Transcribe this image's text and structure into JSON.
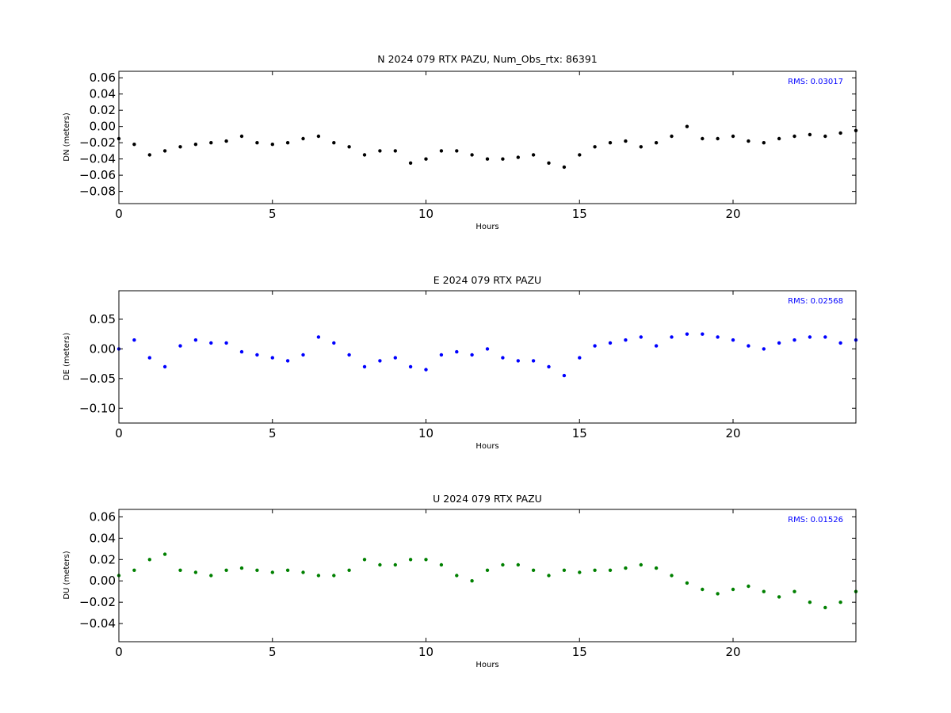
{
  "chart_data": [
    {
      "type": "scatter",
      "title": "N 2024 079 RTX  PAZU, Num_Obs_rtx: 86391",
      "xlabel": "Hours",
      "ylabel": "DN (meters)",
      "xlim": [
        0,
        24
      ],
      "ylim": [
        -0.095,
        0.068
      ],
      "xticks": [
        0,
        5,
        10,
        15,
        20
      ],
      "yticks": [
        0.06,
        0.04,
        0.02,
        0.0,
        -0.02,
        -0.04,
        -0.06,
        -0.08
      ],
      "ytick_labels": [
        "0.06",
        "0.04",
        "0.02",
        "0.00",
        "−0.02",
        "−0.04",
        "−0.06",
        "−0.08"
      ],
      "color": "#000000",
      "annotation": "RMS:  0.03017",
      "annotation_color": "#0000ff",
      "grid": false,
      "series": [
        {
          "x": [
            0,
            0.5,
            1,
            1.5,
            2,
            2.5,
            3,
            3.5,
            4,
            4.5,
            5,
            5.5,
            6,
            6.5,
            7,
            7.5,
            8,
            8.5,
            9,
            9.5,
            10,
            10.5,
            11,
            11.5,
            12,
            12.5,
            13,
            13.5,
            14,
            14.5,
            15,
            15.5,
            16,
            16.5,
            17,
            17.5,
            18,
            18.5,
            19,
            19.5,
            20,
            20.5,
            21,
            21.5,
            22,
            22.5,
            23,
            23.5,
            24
          ],
          "y": [
            -0.015,
            -0.022,
            -0.035,
            -0.03,
            -0.025,
            -0.022,
            -0.02,
            -0.018,
            -0.012,
            -0.02,
            -0.022,
            -0.02,
            -0.015,
            -0.012,
            -0.02,
            -0.025,
            -0.035,
            -0.03,
            -0.03,
            -0.045,
            -0.04,
            -0.03,
            -0.03,
            -0.035,
            -0.04,
            -0.04,
            -0.038,
            -0.035,
            -0.045,
            -0.05,
            -0.035,
            -0.025,
            -0.02,
            -0.018,
            -0.025,
            -0.02,
            -0.012,
            -0.0,
            -0.015,
            -0.015,
            -0.012,
            -0.018,
            -0.02,
            -0.015,
            -0.012,
            -0.01,
            -0.012,
            -0.008,
            -0.005
          ]
        }
      ]
    },
    {
      "type": "scatter",
      "title": "E 2024 079 RTX  PAZU",
      "xlabel": "Hours",
      "ylabel": "DE (meters)",
      "xlim": [
        0,
        24
      ],
      "ylim": [
        -0.125,
        0.098
      ],
      "xticks": [
        0,
        5,
        10,
        15,
        20
      ],
      "yticks": [
        0.05,
        0.0,
        -0.05,
        -0.1
      ],
      "ytick_labels": [
        "0.05",
        "0.00",
        "−0.05",
        "−0.10"
      ],
      "color": "#0000ff",
      "annotation": "RMS:  0.02568",
      "annotation_color": "#0000ff",
      "grid": false,
      "series": [
        {
          "x": [
            0,
            0.5,
            1,
            1.5,
            2,
            2.5,
            3,
            3.5,
            4,
            4.5,
            5,
            5.5,
            6,
            6.5,
            7,
            7.5,
            8,
            8.5,
            9,
            9.5,
            10,
            10.5,
            11,
            11.5,
            12,
            12.5,
            13,
            13.5,
            14,
            14.5,
            15,
            15.5,
            16,
            16.5,
            17,
            17.5,
            18,
            18.5,
            19,
            19.5,
            20,
            20.5,
            21,
            21.5,
            22,
            22.5,
            23,
            23.5,
            24
          ],
          "y": [
            0.0,
            0.015,
            -0.015,
            -0.03,
            0.005,
            0.015,
            0.01,
            0.01,
            -0.005,
            -0.01,
            -0.015,
            -0.02,
            -0.01,
            0.02,
            0.01,
            -0.01,
            -0.03,
            -0.02,
            -0.015,
            -0.03,
            -0.035,
            -0.01,
            -0.005,
            -0.01,
            0.0,
            -0.015,
            -0.02,
            -0.02,
            -0.03,
            -0.045,
            -0.015,
            0.005,
            0.01,
            0.015,
            0.02,
            0.005,
            0.02,
            0.025,
            0.025,
            0.02,
            0.015,
            0.005,
            0.0,
            0.01,
            0.015,
            0.02,
            0.02,
            0.01,
            0.015
          ]
        }
      ]
    },
    {
      "type": "scatter",
      "title": "U 2024 079 RTX  PAZU",
      "xlabel": "Hours",
      "ylabel": "DU (meters)",
      "xlim": [
        0,
        24
      ],
      "ylim": [
        -0.057,
        0.067
      ],
      "xticks": [
        0,
        5,
        10,
        15,
        20
      ],
      "yticks": [
        0.06,
        0.04,
        0.02,
        0.0,
        -0.02,
        -0.04
      ],
      "ytick_labels": [
        "0.06",
        "0.04",
        "0.02",
        "0.00",
        "−0.02",
        "−0.04"
      ],
      "color": "#008000",
      "annotation": "RMS:  0.01526",
      "annotation_color": "#0000ff",
      "grid": false,
      "series": [
        {
          "x": [
            0,
            0.5,
            1,
            1.5,
            2,
            2.5,
            3,
            3.5,
            4,
            4.5,
            5,
            5.5,
            6,
            6.5,
            7,
            7.5,
            8,
            8.5,
            9,
            9.5,
            10,
            10.5,
            11,
            11.5,
            12,
            12.5,
            13,
            13.5,
            14,
            14.5,
            15,
            15.5,
            16,
            16.5,
            17,
            17.5,
            18,
            18.5,
            19,
            19.5,
            20,
            20.5,
            21,
            21.5,
            22,
            22.5,
            23,
            23.5,
            24
          ],
          "y": [
            0.005,
            0.01,
            0.02,
            0.025,
            0.01,
            0.008,
            0.005,
            0.01,
            0.012,
            0.01,
            0.008,
            0.01,
            0.008,
            0.005,
            0.005,
            0.01,
            0.02,
            0.015,
            0.015,
            0.02,
            0.02,
            0.015,
            0.005,
            0.0,
            0.01,
            0.015,
            0.015,
            0.01,
            0.005,
            0.01,
            0.008,
            0.01,
            0.01,
            0.012,
            0.015,
            0.012,
            0.005,
            -0.002,
            -0.008,
            -0.012,
            -0.008,
            -0.005,
            -0.01,
            -0.015,
            -0.01,
            -0.02,
            -0.025,
            -0.02,
            -0.01
          ]
        }
      ]
    }
  ]
}
